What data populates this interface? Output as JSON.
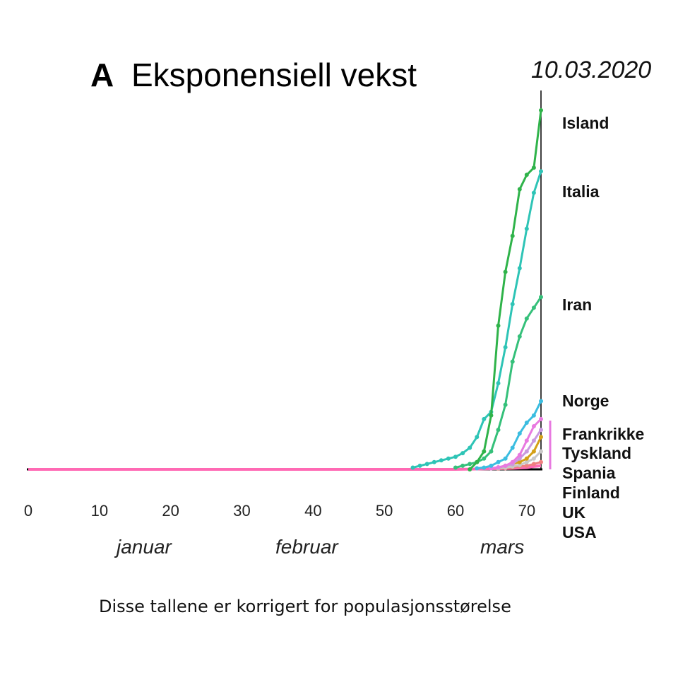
{
  "title_letter": "A",
  "title": "Eksponensiell vekst",
  "date": "10.03.2020",
  "note": "Disse tallene er korrigert for populasjonsstørelse",
  "months": [
    "januar",
    "februar",
    "mars"
  ],
  "countries": [
    "Island",
    "Italia",
    "Iran",
    "Norge",
    "Frankrikke",
    "Tyskland",
    "Spania",
    "Finland",
    "UK",
    "USA"
  ],
  "chart_data": {
    "type": "line",
    "x_ticks": [
      "0",
      "10",
      "20",
      "30",
      "40",
      "50",
      "60",
      "70"
    ],
    "xlim": [
      0,
      72
    ],
    "ylim": [
      0,
      100
    ],
    "colors": {
      "Island": "#2fb34a",
      "Italia": "#2ec4b6",
      "Iran": "#35c07a",
      "Norge": "#3bbde0",
      "Frankrikke": "#e879e0",
      "Tyskland": "#c99ae0",
      "Spania": "#d4a017",
      "Finland": "#c8c8c8",
      "UK": "#f08080",
      "USA": "#ff69b4"
    },
    "series": [
      {
        "name": "Island",
        "x": [
          62,
          63,
          64,
          65,
          66,
          67,
          68,
          69,
          70,
          71,
          72
        ],
        "y": [
          0,
          2,
          5,
          15,
          40,
          55,
          65,
          78,
          82,
          84,
          100
        ]
      },
      {
        "name": "Italia",
        "x": [
          54,
          55,
          56,
          57,
          58,
          59,
          60,
          61,
          62,
          63,
          64,
          65,
          66,
          67,
          68,
          69,
          70,
          71,
          72
        ],
        "y": [
          0.5,
          1,
          1.5,
          2,
          2.5,
          3,
          3.5,
          4.5,
          6,
          9,
          14,
          16,
          24,
          34,
          46,
          56,
          67,
          77,
          83
        ]
      },
      {
        "name": "Iran",
        "x": [
          60,
          61,
          62,
          63,
          64,
          65,
          66,
          67,
          68,
          69,
          70,
          71,
          72
        ],
        "y": [
          0.5,
          1,
          1.5,
          2,
          3,
          5,
          11,
          18,
          30,
          37,
          42,
          45,
          48
        ]
      },
      {
        "name": "Norge",
        "x": [
          63,
          64,
          65,
          66,
          67,
          68,
          69,
          70,
          71,
          72
        ],
        "y": [
          0.3,
          0.5,
          1,
          2,
          3,
          6,
          10,
          13,
          15,
          19
        ]
      },
      {
        "name": "Frankrikke",
        "x": [
          65,
          66,
          67,
          68,
          69,
          70,
          71,
          72
        ],
        "y": [
          0.3,
          0.6,
          1,
          2,
          4,
          8,
          12,
          14
        ]
      },
      {
        "name": "Tyskland",
        "x": [
          65,
          66,
          67,
          68,
          69,
          70,
          71,
          72
        ],
        "y": [
          0.3,
          0.5,
          1,
          1.5,
          3,
          5,
          8,
          11
        ]
      },
      {
        "name": "Spania",
        "x": [
          65,
          66,
          67,
          68,
          69,
          70,
          71,
          72
        ],
        "y": [
          0.3,
          0.5,
          1,
          1.5,
          2,
          3,
          5,
          9
        ]
      },
      {
        "name": "Finland",
        "x": [
          66,
          67,
          68,
          69,
          70,
          71,
          72
        ],
        "y": [
          0.3,
          0.5,
          0.8,
          1.2,
          2,
          3,
          5
        ]
      },
      {
        "name": "UK",
        "x": [
          66,
          67,
          68,
          69,
          70,
          71,
          72
        ],
        "y": [
          0.2,
          0.3,
          0.5,
          0.8,
          1,
          1.5,
          2
        ]
      },
      {
        "name": "USA",
        "x": [
          0,
          10,
          20,
          30,
          40,
          50,
          60,
          66,
          68,
          70,
          71,
          72
        ],
        "y": [
          0,
          0,
          0,
          0,
          0,
          0,
          0,
          0.2,
          0.3,
          0.5,
          0.8,
          1
        ]
      }
    ]
  }
}
